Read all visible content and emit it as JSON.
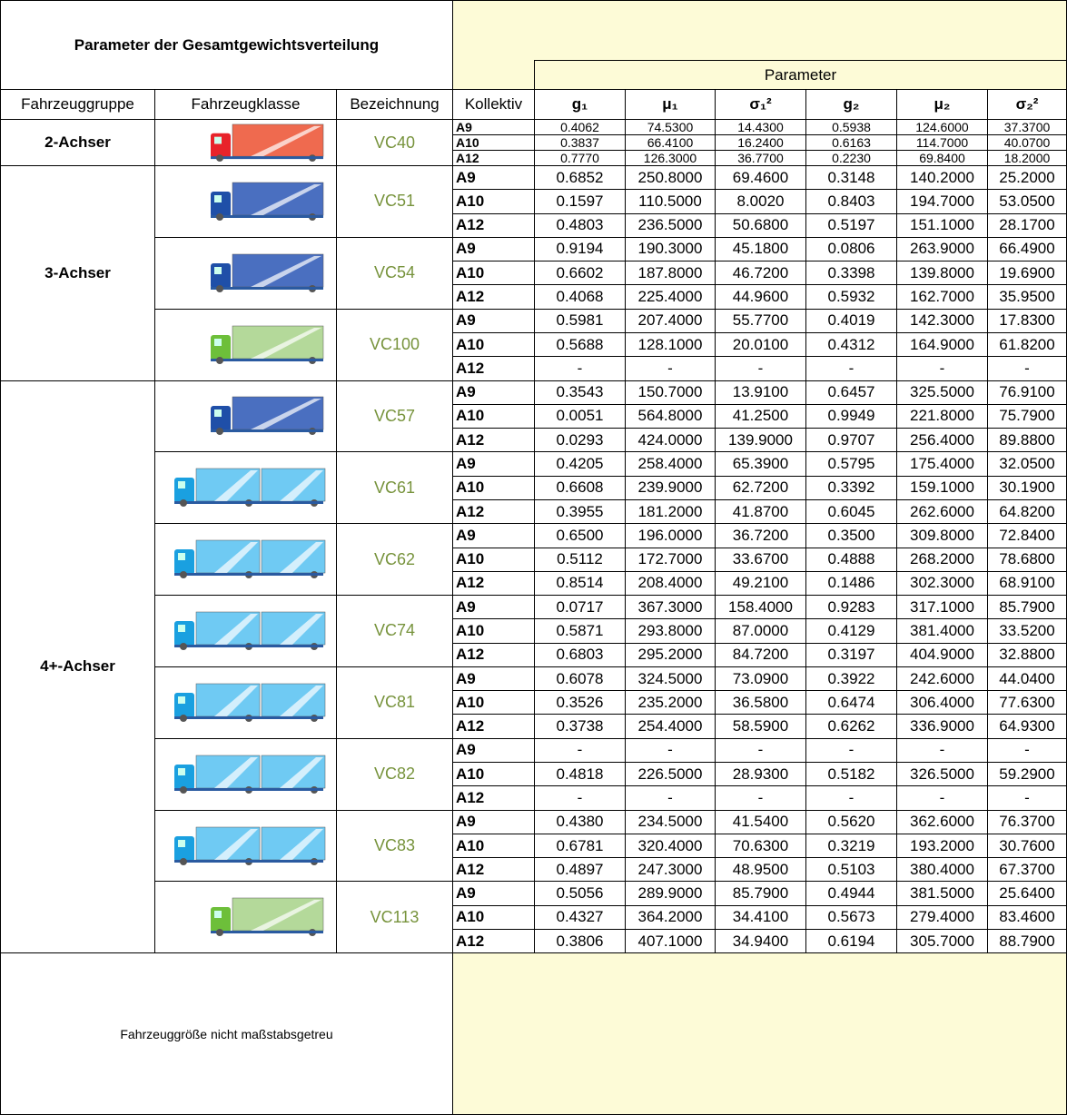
{
  "title": "Parameter der Gesamtgewichtsverteilung",
  "parameter_header": "Parameter",
  "columns": [
    "Fahrzeuggruppe",
    "Fahrzeugklasse",
    "Bezeichnung",
    "Kollektiv",
    "g₁",
    "μ₁",
    "σ₁²",
    "g₂",
    "μ₂",
    "σ₂²"
  ],
  "groups": [
    {
      "name": "2-Achser",
      "classes": [
        {
          "name": "VC40",
          "rows": [
            [
              "A9",
              "0.4062",
              "74.5300",
              "14.4300",
              "0.5938",
              "124.6000",
              "37.3700"
            ],
            [
              "A10",
              "0.3837",
              "66.4100",
              "16.2400",
              "0.6163",
              "114.7000",
              "40.0700"
            ],
            [
              "A12",
              "0.7770",
              "126.3000",
              "36.7700",
              "0.2230",
              "69.8400",
              "18.2000"
            ]
          ]
        }
      ]
    },
    {
      "name": "3-Achser",
      "classes": [
        {
          "name": "VC51",
          "rows": [
            [
              "A9",
              "0.6852",
              "250.8000",
              "69.4600",
              "0.3148",
              "140.2000",
              "25.2000"
            ],
            [
              "A10",
              "0.1597",
              "110.5000",
              "8.0020",
              "0.8403",
              "194.7000",
              "53.0500"
            ],
            [
              "A12",
              "0.4803",
              "236.5000",
              "50.6800",
              "0.5197",
              "151.1000",
              "28.1700"
            ]
          ]
        },
        {
          "name": "VC54",
          "rows": [
            [
              "A9",
              "0.9194",
              "190.3000",
              "45.1800",
              "0.0806",
              "263.9000",
              "66.4900"
            ],
            [
              "A10",
              "0.6602",
              "187.8000",
              "46.7200",
              "0.3398",
              "139.8000",
              "19.6900"
            ],
            [
              "A12",
              "0.4068",
              "225.4000",
              "44.9600",
              "0.5932",
              "162.7000",
              "35.9500"
            ]
          ]
        },
        {
          "name": "VC100",
          "rows": [
            [
              "A9",
              "0.5981",
              "207.4000",
              "55.7700",
              "0.4019",
              "142.3000",
              "17.8300"
            ],
            [
              "A10",
              "0.5688",
              "128.1000",
              "20.0100",
              "0.4312",
              "164.9000",
              "61.8200"
            ],
            [
              "A12",
              "-",
              "-",
              "-",
              "-",
              "-",
              "-"
            ]
          ]
        }
      ]
    },
    {
      "name": "4+-Achser",
      "classes": [
        {
          "name": "VC57",
          "rows": [
            [
              "A9",
              "0.3543",
              "150.7000",
              "13.9100",
              "0.6457",
              "325.5000",
              "76.9100"
            ],
            [
              "A10",
              "0.0051",
              "564.8000",
              "41.2500",
              "0.9949",
              "221.8000",
              "75.7900"
            ],
            [
              "A12",
              "0.0293",
              "424.0000",
              "139.9000",
              "0.9707",
              "256.4000",
              "89.8800"
            ]
          ]
        },
        {
          "name": "VC61",
          "rows": [
            [
              "A9",
              "0.4205",
              "258.4000",
              "65.3900",
              "0.5795",
              "175.4000",
              "32.0500"
            ],
            [
              "A10",
              "0.6608",
              "239.9000",
              "62.7200",
              "0.3392",
              "159.1000",
              "30.1900"
            ],
            [
              "A12",
              "0.3955",
              "181.2000",
              "41.8700",
              "0.6045",
              "262.6000",
              "64.8200"
            ]
          ]
        },
        {
          "name": "VC62",
          "rows": [
            [
              "A9",
              "0.6500",
              "196.0000",
              "36.7200",
              "0.3500",
              "309.8000",
              "72.8400"
            ],
            [
              "A10",
              "0.5112",
              "172.7000",
              "33.6700",
              "0.4888",
              "268.2000",
              "78.6800"
            ],
            [
              "A12",
              "0.8514",
              "208.4000",
              "49.2100",
              "0.1486",
              "302.3000",
              "68.9100"
            ]
          ]
        },
        {
          "name": "VC74",
          "rows": [
            [
              "A9",
              "0.0717",
              "367.3000",
              "158.4000",
              "0.9283",
              "317.1000",
              "85.7900"
            ],
            [
              "A10",
              "0.5871",
              "293.8000",
              "87.0000",
              "0.4129",
              "381.4000",
              "33.5200"
            ],
            [
              "A12",
              "0.6803",
              "295.2000",
              "84.7200",
              "0.3197",
              "404.9000",
              "32.8800"
            ]
          ]
        },
        {
          "name": "VC81",
          "rows": [
            [
              "A9",
              "0.6078",
              "324.5000",
              "73.0900",
              "0.3922",
              "242.6000",
              "44.0400"
            ],
            [
              "A10",
              "0.3526",
              "235.2000",
              "36.5800",
              "0.6474",
              "306.4000",
              "77.6300"
            ],
            [
              "A12",
              "0.3738",
              "254.4000",
              "58.5900",
              "0.6262",
              "336.9000",
              "64.9300"
            ]
          ]
        },
        {
          "name": "VC82",
          "rows": [
            [
              "A9",
              "-",
              "-",
              "-",
              "-",
              "-",
              "-"
            ],
            [
              "A10",
              "0.4818",
              "226.5000",
              "28.9300",
              "0.5182",
              "326.5000",
              "59.2900"
            ],
            [
              "A12",
              "-",
              "-",
              "-",
              "-",
              "-",
              "-"
            ]
          ]
        },
        {
          "name": "VC83",
          "rows": [
            [
              "A9",
              "0.4380",
              "234.5000",
              "41.5400",
              "0.5620",
              "362.6000",
              "76.3700"
            ],
            [
              "A10",
              "0.6781",
              "320.4000",
              "70.6300",
              "0.3219",
              "193.2000",
              "30.7600"
            ],
            [
              "A12",
              "0.4897",
              "247.3000",
              "48.9500",
              "0.5103",
              "380.4000",
              "67.3700"
            ]
          ]
        },
        {
          "name": "VC113",
          "rows": [
            [
              "A9",
              "0.5056",
              "289.9000",
              "85.7900",
              "0.4944",
              "381.5000",
              "25.6400"
            ],
            [
              "A10",
              "0.4327",
              "364.2000",
              "34.4100",
              "0.5673",
              "279.4000",
              "83.4600"
            ],
            [
              "A12",
              "0.3806",
              "407.1000",
              "34.9400",
              "0.6194",
              "305.7000",
              "88.7900"
            ]
          ]
        }
      ]
    }
  ],
  "footnote": "Fahrzeuggröße nicht maßstabsgetreu"
}
